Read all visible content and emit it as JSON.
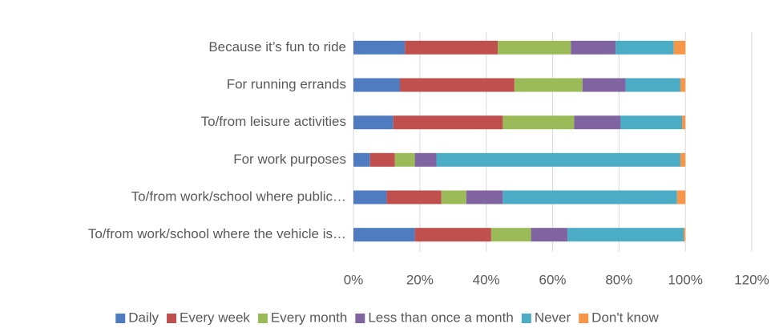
{
  "chart_data": {
    "type": "stacked_bar_horizontal",
    "categories": [
      "Because it’s fun to ride",
      "For running errands",
      "To/from leisure activities",
      "For work purposes",
      "To/from work/school where public…",
      "To/from work/school where the vehicle is…"
    ],
    "series": [
      {
        "name": "Daily",
        "color": "#4f7cc0",
        "values": [
          15.5,
          14,
          12,
          5,
          10,
          18.5
        ]
      },
      {
        "name": "Every week",
        "color": "#c0504d",
        "values": [
          28,
          34.5,
          33,
          7.5,
          16.5,
          23
        ]
      },
      {
        "name": "Every month",
        "color": "#9bbb59",
        "values": [
          22,
          20.5,
          21.5,
          6,
          7.5,
          12
        ]
      },
      {
        "name": "Less than once a month",
        "color": "#8064a2",
        "values": [
          13.5,
          13,
          14,
          6.5,
          11,
          11
        ]
      },
      {
        "name": "Never",
        "color": "#4bacc6",
        "values": [
          17.5,
          16.5,
          18.5,
          73.5,
          52.5,
          35
        ]
      },
      {
        "name": "Don't know",
        "color": "#f79646",
        "values": [
          3.5,
          1.5,
          1,
          1.5,
          2.5,
          0.5
        ]
      }
    ],
    "xlim": [
      0,
      120
    ],
    "xticks": [
      {
        "value": 0,
        "label": "0%"
      },
      {
        "value": 20,
        "label": "20%"
      },
      {
        "value": 40,
        "label": "40%"
      },
      {
        "value": 60,
        "label": "60%"
      },
      {
        "value": 80,
        "label": "80%"
      },
      {
        "value": 100,
        "label": "100%"
      },
      {
        "value": 120,
        "label": "120%"
      }
    ],
    "grid": true,
    "legend": "bottom"
  }
}
